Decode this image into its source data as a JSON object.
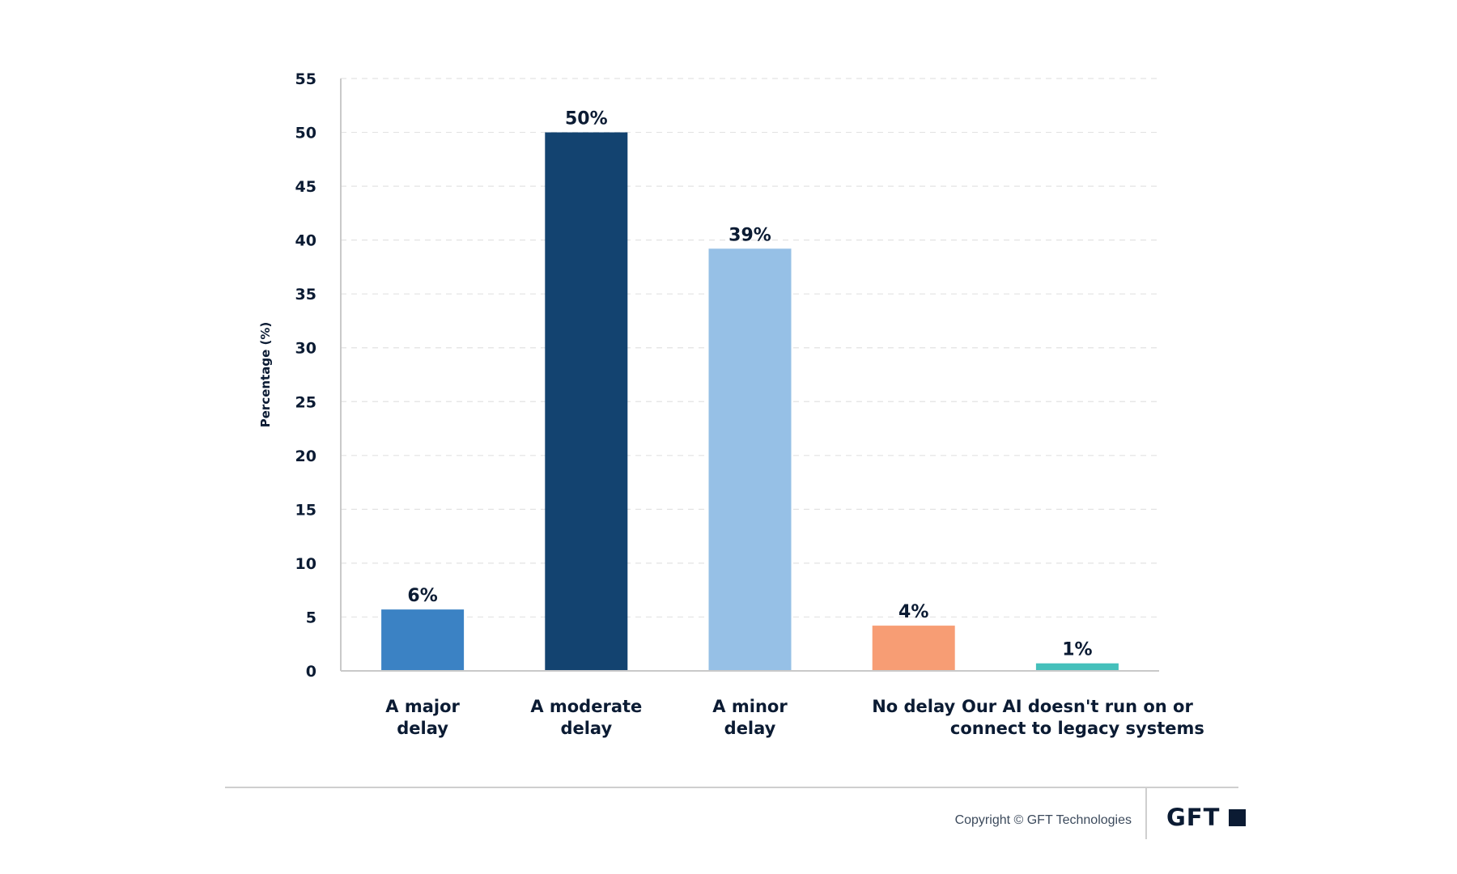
{
  "chart_data": {
    "type": "bar",
    "title": "",
    "xlabel": "",
    "ylabel": "Percentage (%)",
    "ylim": [
      0,
      55
    ],
    "yticks": [
      0,
      5,
      10,
      15,
      20,
      25,
      30,
      35,
      40,
      45,
      50,
      55
    ],
    "grid": true,
    "legend": "none",
    "categories": [
      [
        "A major",
        "delay"
      ],
      [
        "A moderate",
        "delay"
      ],
      [
        "A minor",
        "delay"
      ],
      [
        "No delay"
      ],
      [
        "Our AI doesn't run on or",
        "connect to legacy systems"
      ]
    ],
    "values": [
      5.7,
      50,
      39.2,
      4.2,
      0.7
    ],
    "data_labels": [
      "6%",
      "50%",
      "39%",
      "4%",
      "1%"
    ],
    "colors": [
      "#3b82c4",
      "#134370",
      "#96c0e6",
      "#f79d74",
      "#45c0bb"
    ]
  },
  "footer": {
    "copyright": "Copyright © GFT Technologies",
    "brand": "GFT"
  }
}
